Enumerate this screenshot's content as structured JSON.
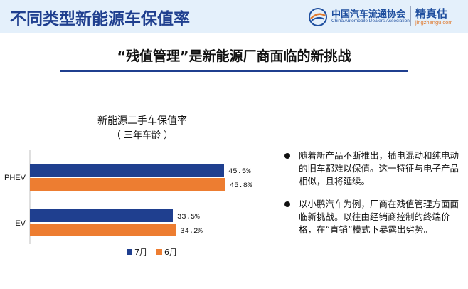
{
  "header": {
    "title": "不同类型新能源车保值率",
    "logo_cn": "中国汽车流通协会",
    "logo_en": "China Automobile Dealers Association",
    "logo2_cn": "精真估",
    "logo2_url": "jingzhengu.com"
  },
  "subtitle": "“残值管理”是新能源厂商面临的新挑战",
  "chart_data": {
    "type": "bar",
    "orientation": "horizontal",
    "title": "新能源二手车保值率",
    "subtitle": "（  三年车龄  ）",
    "categories": [
      "PHEV",
      "EV"
    ],
    "series": [
      {
        "name": "7月",
        "color": "#1f3f8f",
        "values": [
          45.5,
          33.5
        ],
        "labels": [
          "45.5%",
          "33.5%"
        ]
      },
      {
        "name": "6月",
        "color": "#ed7d31",
        "values": [
          45.8,
          34.2
        ],
        "labels": [
          "45.8%",
          "34.2%"
        ]
      }
    ],
    "xlim": [
      0,
      50
    ],
    "grid": false,
    "legend": "bottom"
  },
  "bullets": [
    "随着新产品不断推出，插电混动和纯电动的旧车都难以保值。这一特征与电子产品相似，且将延续。",
    "以小鹏汽车为例，厂商在残值管理方面面临新挑战。以往由经销商控制的终端价格，在“直销”模式下暴露出劣势。"
  ],
  "colors": {
    "title_blue": "#1f3f8f",
    "orange": "#ed7d31",
    "header_bg": "#e4f0fb"
  }
}
